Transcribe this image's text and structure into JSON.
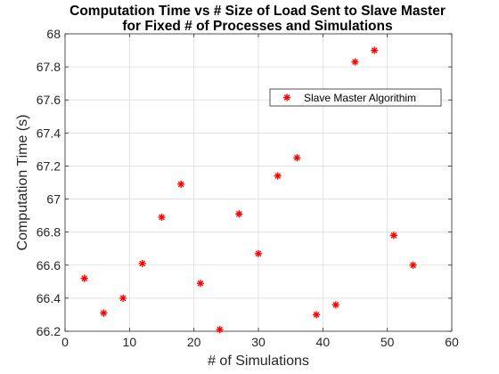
{
  "chart_data": {
    "type": "scatter",
    "title": [
      "Computation Time vs # Size of Load Sent to Slave Master",
      "for Fixed # of Processes and Simulations"
    ],
    "xlabel": "# of Simulations",
    "ylabel": "Computation Time (s)",
    "xlim": [
      0,
      60
    ],
    "ylim": [
      66.2,
      68
    ],
    "xticks": [
      "0",
      "10",
      "20",
      "30",
      "40",
      "50",
      "60"
    ],
    "yticks": [
      "66.2",
      "66.4",
      "66.6",
      "66.8",
      "67",
      "67.2",
      "67.4",
      "67.6",
      "67.8",
      "68"
    ],
    "grid": true,
    "legend_position": "upper-right",
    "series": [
      {
        "name": "Slave Master Algorithim",
        "color": "#ff0000",
        "marker": "asterisk",
        "points": [
          {
            "x": 3,
            "y": 66.52
          },
          {
            "x": 6,
            "y": 66.31
          },
          {
            "x": 9,
            "y": 66.4
          },
          {
            "x": 12,
            "y": 66.61
          },
          {
            "x": 15,
            "y": 66.89
          },
          {
            "x": 18,
            "y": 67.09
          },
          {
            "x": 21,
            "y": 66.49
          },
          {
            "x": 24,
            "y": 66.21
          },
          {
            "x": 27,
            "y": 66.91
          },
          {
            "x": 30,
            "y": 66.67
          },
          {
            "x": 33,
            "y": 67.14
          },
          {
            "x": 36,
            "y": 67.25
          },
          {
            "x": 39,
            "y": 66.3
          },
          {
            "x": 42,
            "y": 66.36
          },
          {
            "x": 45,
            "y": 67.83
          },
          {
            "x": 48,
            "y": 67.9
          },
          {
            "x": 51,
            "y": 66.78
          },
          {
            "x": 54,
            "y": 66.6
          }
        ]
      }
    ]
  }
}
